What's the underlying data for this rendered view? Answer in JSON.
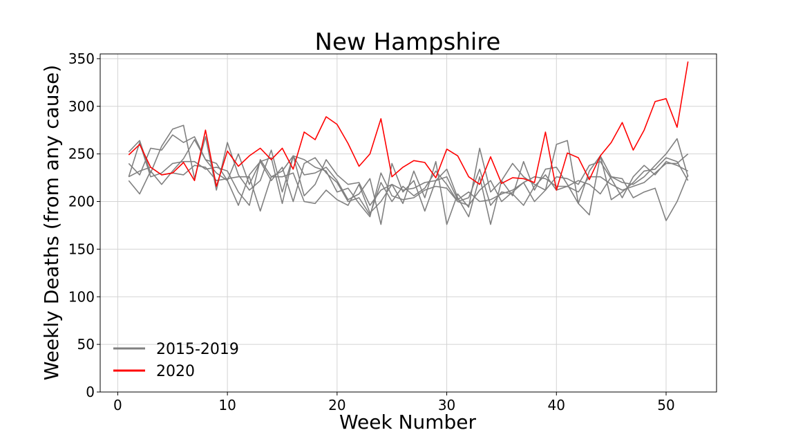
{
  "chart_data": {
    "type": "line",
    "title": "New Hampshire",
    "xlabel": "Week Number",
    "ylabel": "Weekly Deaths (from any cause)",
    "xlim": [
      -1.6,
      54.6
    ],
    "ylim": [
      0,
      355
    ],
    "xticks": [
      0,
      10,
      20,
      30,
      40,
      50
    ],
    "yticks": [
      0,
      50,
      100,
      150,
      200,
      250,
      300,
      350
    ],
    "grid": true,
    "legend": {
      "position": "bottom-left",
      "entries": [
        {
          "label": "2015-2019",
          "color": "#808080"
        },
        {
          "label": "2020",
          "color": "#ff0000"
        }
      ]
    },
    "x": [
      1,
      2,
      3,
      4,
      5,
      6,
      7,
      8,
      9,
      10,
      11,
      12,
      13,
      14,
      15,
      16,
      17,
      18,
      19,
      20,
      21,
      22,
      23,
      24,
      25,
      26,
      27,
      28,
      29,
      30,
      31,
      32,
      33,
      34,
      35,
      36,
      37,
      38,
      39,
      40,
      41,
      42,
      43,
      44,
      45,
      46,
      47,
      48,
      49,
      50,
      51,
      52
    ],
    "series": [
      {
        "color": "#808080",
        "values": [
          252,
          264,
          230,
          258,
          276,
          280,
          224,
          268,
          212,
          262,
          228,
          212,
          222,
          254,
          210,
          248,
          206,
          218,
          244,
          228,
          218,
          220,
          196,
          212,
          218,
          198,
          232,
          204,
          242,
          176,
          208,
          194,
          256,
          210,
          222,
          240,
          226,
          218,
          212,
          260,
          264,
          198,
          186,
          248,
          226,
          220,
          218,
          226,
          238,
          250,
          266,
          226
        ]
      },
      {
        "color": "#808080",
        "values": [
          222,
          208,
          232,
          218,
          232,
          245,
          265,
          244,
          240,
          222,
          196,
          228,
          242,
          246,
          198,
          248,
          228,
          230,
          236,
          222,
          202,
          208,
          224,
          176,
          240,
          210,
          222,
          190,
          222,
          234,
          204,
          184,
          226,
          176,
          222,
          206,
          242,
          212,
          234,
          236,
          218,
          198,
          232,
          248,
          202,
          210,
          220,
          232,
          234,
          246,
          242,
          222
        ]
      },
      {
        "color": "#808080",
        "values": [
          240,
          228,
          256,
          254,
          270,
          262,
          268,
          244,
          230,
          222,
          250,
          218,
          242,
          222,
          236,
          200,
          240,
          246,
          230,
          220,
          200,
          204,
          186,
          220,
          200,
          216,
          206,
          214,
          232,
          218,
          200,
          196,
          212,
          222,
          200,
          210,
          220,
          200,
          212,
          226,
          224,
          218,
          238,
          242,
          224,
          204,
          226,
          238,
          228,
          242,
          238,
          232
        ]
      },
      {
        "color": "#808080",
        "values": [
          226,
          262,
          226,
          230,
          240,
          242,
          242,
          234,
          236,
          232,
          210,
          196,
          244,
          226,
          226,
          230,
          200,
          198,
          212,
          202,
          196,
          218,
          188,
          200,
          218,
          212,
          214,
          220,
          222,
          226,
          202,
          210,
          200,
          202,
          208,
          212,
          220,
          226,
          224,
          216,
          216,
          210,
          226,
          226,
          218,
          212,
          216,
          220,
          230,
          240,
          240,
          250
        ]
      },
      {
        "color": "#808080",
        "values": [
          226,
          232,
          236,
          228,
          230,
          228,
          238,
          236,
          222,
          224,
          226,
          226,
          190,
          226,
          232,
          248,
          244,
          236,
          232,
          210,
          214,
          198,
          184,
          230,
          206,
          202,
          204,
          212,
          216,
          214,
          200,
          204,
          234,
          196,
          210,
          208,
          196,
          216,
          228,
          212,
          216,
          222,
          218,
          208,
          226,
          224,
          204,
          210,
          214,
          180,
          200,
          228
        ]
      },
      {
        "color": "#ff0000",
        "values": [
          249,
          260,
          236,
          228,
          230,
          241,
          222,
          275,
          216,
          253,
          237,
          248,
          256,
          244,
          256,
          234,
          273,
          265,
          289,
          281,
          261,
          237,
          250,
          287,
          226,
          236,
          243,
          241,
          225,
          255,
          248,
          226,
          218,
          247,
          219,
          225,
          224,
          220,
          273,
          212,
          251,
          246,
          223,
          248,
          262,
          283,
          254,
          275,
          305,
          308,
          278,
          347
        ]
      }
    ]
  }
}
